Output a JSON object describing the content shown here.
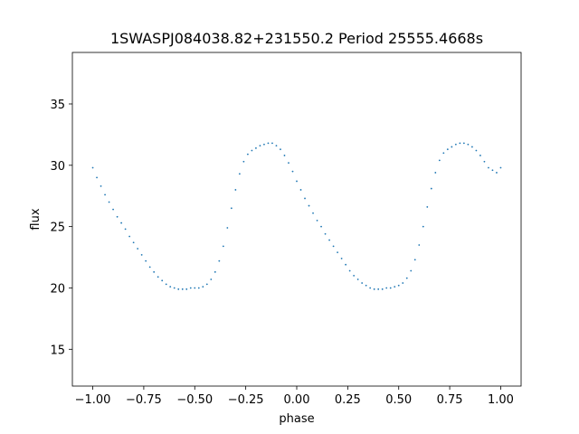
{
  "chart_data": {
    "type": "scatter",
    "title": "1SWASPJ084038.82+231550.2 Period 25555.4668s",
    "xlabel": "phase",
    "ylabel": "flux",
    "xlim": [
      -1.1,
      1.1
    ],
    "ylim": [
      12.0,
      39.2
    ],
    "x_ticks": [
      -1.0,
      -0.75,
      -0.5,
      -0.25,
      0.0,
      0.25,
      0.5,
      0.75,
      1.0
    ],
    "x_tick_labels": [
      "−1.00",
      "−0.75",
      "−0.50",
      "−0.25",
      "0.00",
      "0.25",
      "0.50",
      "0.75",
      "1.00"
    ],
    "y_ticks": [
      15,
      20,
      25,
      30,
      35
    ],
    "y_tick_labels": [
      "15",
      "20",
      "25",
      "30",
      "35"
    ],
    "grid": false,
    "legend": "none",
    "marker_color": "#1f77b4",
    "series": [
      {
        "values_description_x": [],
        "x": [
          -1.0,
          -0.98,
          -0.96,
          -0.94,
          -0.92,
          -0.9,
          -0.88,
          -0.86,
          -0.84,
          -0.82,
          -0.8,
          -0.78,
          -0.76,
          -0.74,
          -0.72,
          -0.7,
          -0.68,
          -0.66,
          -0.64,
          -0.62,
          -0.6,
          -0.58,
          -0.56,
          -0.54,
          -0.52,
          -0.5,
          -0.48,
          -0.46,
          -0.44,
          -0.42,
          -0.4,
          -0.38,
          -0.36,
          -0.34,
          -0.32,
          -0.3,
          -0.28,
          -0.26,
          -0.24,
          -0.22,
          -0.2,
          -0.18,
          -0.16,
          -0.14,
          -0.12,
          -0.1,
          -0.08,
          -0.06,
          -0.04,
          -0.02,
          0.0,
          0.02,
          0.04,
          0.06,
          0.08,
          0.1,
          0.12,
          0.14,
          0.16,
          0.18,
          0.2,
          0.22,
          0.24,
          0.26,
          0.28,
          0.3,
          0.32,
          0.34,
          0.36,
          0.38,
          0.4,
          0.42,
          0.44,
          0.46,
          0.48,
          0.5,
          0.52,
          0.54,
          0.56,
          0.58,
          0.6,
          0.62,
          0.64,
          0.66,
          0.68,
          0.7,
          0.72,
          0.74,
          0.76,
          0.78,
          0.8,
          0.82,
          0.84,
          0.86,
          0.88,
          0.9,
          0.92,
          0.94,
          0.96,
          0.98,
          1.0
        ],
        "y": [
          29.8,
          29.0,
          28.3,
          27.6,
          27.0,
          26.4,
          25.8,
          25.3,
          24.8,
          24.2,
          23.7,
          23.2,
          22.7,
          22.2,
          21.7,
          21.3,
          20.9,
          20.6,
          20.3,
          20.1,
          20.0,
          19.9,
          19.9,
          19.9,
          20.0,
          20.0,
          20.0,
          20.1,
          20.3,
          20.7,
          21.3,
          22.2,
          23.4,
          24.9,
          26.5,
          28.0,
          29.3,
          30.3,
          30.9,
          31.2,
          31.4,
          31.6,
          31.7,
          31.8,
          31.8,
          31.6,
          31.3,
          30.8,
          30.2,
          29.5,
          28.7,
          28.0,
          27.3,
          26.7,
          26.1,
          25.5,
          25.0,
          24.4,
          23.9,
          23.4,
          22.9,
          22.4,
          21.9,
          21.4,
          21.0,
          20.7,
          20.4,
          20.2,
          20.0,
          19.9,
          19.9,
          19.9,
          20.0,
          20.0,
          20.1,
          20.2,
          20.4,
          20.8,
          21.4,
          22.3,
          23.5,
          25.0,
          26.6,
          28.1,
          29.4,
          30.4,
          31.0,
          31.3,
          31.5,
          31.7,
          31.8,
          31.8,
          31.7,
          31.5,
          31.2,
          30.8,
          30.3,
          29.8,
          29.6,
          29.4,
          29.8
        ]
      }
    ]
  }
}
